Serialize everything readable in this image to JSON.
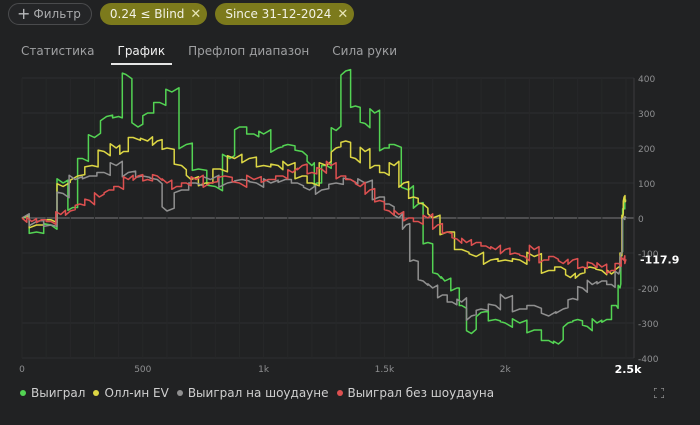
{
  "filters": {
    "add_label": "Фильтр",
    "active": [
      {
        "label": "0.24 ≤ Blind"
      },
      {
        "label": "Since 31-12-2024"
      }
    ]
  },
  "tabs": [
    {
      "label": "Статистика",
      "active": false
    },
    {
      "label": "График",
      "active": true
    },
    {
      "label": "Префлоп диапазон",
      "active": false
    },
    {
      "label": "Сила руки",
      "active": false
    }
  ],
  "chart_data": {
    "type": "line",
    "xlim": [
      0,
      2500
    ],
    "ylim": [
      -400,
      400
    ],
    "x_ticks": [
      "0",
      "500",
      "1k",
      "1.5k",
      "2k",
      "2.5k"
    ],
    "y_ticks": [
      "400",
      "300",
      "200",
      "100",
      "0",
      "-100",
      "-200",
      "-300",
      "-400"
    ],
    "y_ticks_right": true,
    "current_value_label": "-117.9",
    "last_x_label": "2.5k",
    "grid": true,
    "legend_position": "bottom-left",
    "series": [
      {
        "name": "Выиграл",
        "color": "#53d353",
        "points": [
          [
            0,
            0
          ],
          [
            60,
            -40
          ],
          [
            120,
            -20
          ],
          [
            170,
            100
          ],
          [
            210,
            30
          ],
          [
            250,
            170
          ],
          [
            300,
            230
          ],
          [
            350,
            290
          ],
          [
            400,
            290
          ],
          [
            430,
            410
          ],
          [
            480,
            260
          ],
          [
            520,
            300
          ],
          [
            570,
            330
          ],
          [
            620,
            360
          ],
          [
            680,
            210
          ],
          [
            730,
            140
          ],
          [
            800,
            90
          ],
          [
            860,
            170
          ],
          [
            900,
            260
          ],
          [
            960,
            240
          ],
          [
            1000,
            240
          ],
          [
            1060,
            200
          ],
          [
            1100,
            210
          ],
          [
            1160,
            190
          ],
          [
            1200,
            150
          ],
          [
            1220,
            100
          ],
          [
            1260,
            150
          ],
          [
            1300,
            250
          ],
          [
            1340,
            420
          ],
          [
            1380,
            320
          ],
          [
            1420,
            270
          ],
          [
            1460,
            300
          ],
          [
            1500,
            200
          ],
          [
            1540,
            210
          ],
          [
            1600,
            80
          ],
          [
            1640,
            40
          ],
          [
            1680,
            -70
          ],
          [
            1720,
            -160
          ],
          [
            1750,
            -180
          ],
          [
            1800,
            -200
          ],
          [
            1820,
            -250
          ],
          [
            1860,
            -330
          ],
          [
            1900,
            -270
          ],
          [
            1960,
            -290
          ],
          [
            2000,
            -300
          ],
          [
            2060,
            -300
          ],
          [
            2120,
            -320
          ],
          [
            2180,
            -350
          ],
          [
            2220,
            -360
          ],
          [
            2260,
            -300
          ],
          [
            2300,
            -290
          ],
          [
            2340,
            -310
          ],
          [
            2380,
            -300
          ],
          [
            2420,
            -290
          ],
          [
            2460,
            -250
          ],
          [
            2475,
            -200
          ],
          [
            2482,
            -100
          ],
          [
            2490,
            30
          ],
          [
            2500,
            50
          ]
        ]
      },
      {
        "name": "Олл-ин EV",
        "color": "#dcd644",
        "points": [
          [
            0,
            0
          ],
          [
            60,
            -20
          ],
          [
            120,
            -5
          ],
          [
            170,
            90
          ],
          [
            230,
            120
          ],
          [
            290,
            150
          ],
          [
            340,
            190
          ],
          [
            390,
            200
          ],
          [
            420,
            190
          ],
          [
            460,
            230
          ],
          [
            520,
            220
          ],
          [
            560,
            220
          ],
          [
            600,
            200
          ],
          [
            660,
            150
          ],
          [
            700,
            110
          ],
          [
            760,
            100
          ],
          [
            820,
            140
          ],
          [
            880,
            170
          ],
          [
            940,
            170
          ],
          [
            1000,
            150
          ],
          [
            1060,
            150
          ],
          [
            1100,
            150
          ],
          [
            1160,
            120
          ],
          [
            1200,
            100
          ],
          [
            1260,
            150
          ],
          [
            1300,
            200
          ],
          [
            1340,
            220
          ],
          [
            1380,
            170
          ],
          [
            1420,
            190
          ],
          [
            1460,
            150
          ],
          [
            1500,
            130
          ],
          [
            1540,
            150
          ],
          [
            1580,
            100
          ],
          [
            1620,
            60
          ],
          [
            1660,
            40
          ],
          [
            1700,
            0
          ],
          [
            1760,
            -40
          ],
          [
            1820,
            -90
          ],
          [
            1880,
            -110
          ],
          [
            1940,
            -120
          ],
          [
            2000,
            -120
          ],
          [
            2060,
            -120
          ],
          [
            2120,
            -110
          ],
          [
            2180,
            -150
          ],
          [
            2230,
            -140
          ],
          [
            2270,
            -170
          ],
          [
            2310,
            -160
          ],
          [
            2350,
            -140
          ],
          [
            2400,
            -150
          ],
          [
            2440,
            -160
          ],
          [
            2470,
            -140
          ],
          [
            2480,
            -100
          ],
          [
            2486,
            0
          ],
          [
            2492,
            60
          ],
          [
            2500,
            50
          ]
        ]
      },
      {
        "name": "Выиграл на шоудауне",
        "color": "#8f8f8f",
        "points": [
          [
            0,
            0
          ],
          [
            60,
            -10
          ],
          [
            120,
            -20
          ],
          [
            170,
            70
          ],
          [
            220,
            110
          ],
          [
            280,
            120
          ],
          [
            340,
            130
          ],
          [
            390,
            150
          ],
          [
            440,
            130
          ],
          [
            500,
            120
          ],
          [
            560,
            110
          ],
          [
            600,
            20
          ],
          [
            660,
            80
          ],
          [
            720,
            100
          ],
          [
            780,
            110
          ],
          [
            850,
            100
          ],
          [
            910,
            110
          ],
          [
            970,
            100
          ],
          [
            1030,
            100
          ],
          [
            1090,
            110
          ],
          [
            1140,
            100
          ],
          [
            1190,
            80
          ],
          [
            1240,
            80
          ],
          [
            1300,
            100
          ],
          [
            1360,
            110
          ],
          [
            1420,
            100
          ],
          [
            1480,
            60
          ],
          [
            1520,
            40
          ],
          [
            1560,
            0
          ],
          [
            1590,
            -20
          ],
          [
            1620,
            -120
          ],
          [
            1660,
            -180
          ],
          [
            1700,
            -200
          ],
          [
            1740,
            -220
          ],
          [
            1780,
            -240
          ],
          [
            1820,
            -240
          ],
          [
            1860,
            -280
          ],
          [
            1900,
            -260
          ],
          [
            1960,
            -250
          ],
          [
            2000,
            -230
          ],
          [
            2060,
            -260
          ],
          [
            2120,
            -250
          ],
          [
            2180,
            -280
          ],
          [
            2240,
            -260
          ],
          [
            2280,
            -230
          ],
          [
            2320,
            -200
          ],
          [
            2360,
            -190
          ],
          [
            2400,
            -180
          ],
          [
            2440,
            -190
          ],
          [
            2470,
            -160
          ],
          [
            2480,
            -100
          ],
          [
            2490,
            0
          ],
          [
            2500,
            0
          ]
        ]
      },
      {
        "name": "Выиграл без шоудауна",
        "color": "#dd5050",
        "points": [
          [
            0,
            0
          ],
          [
            40,
            -10
          ],
          [
            80,
            -5
          ],
          [
            120,
            -10
          ],
          [
            160,
            10
          ],
          [
            200,
            20
          ],
          [
            240,
            40
          ],
          [
            280,
            50
          ],
          [
            320,
            60
          ],
          [
            360,
            80
          ],
          [
            400,
            90
          ],
          [
            440,
            110
          ],
          [
            480,
            120
          ],
          [
            520,
            110
          ],
          [
            560,
            120
          ],
          [
            600,
            100
          ],
          [
            640,
            90
          ],
          [
            680,
            100
          ],
          [
            720,
            110
          ],
          [
            780,
            100
          ],
          [
            840,
            120
          ],
          [
            900,
            100
          ],
          [
            960,
            110
          ],
          [
            1020,
            110
          ],
          [
            1080,
            120
          ],
          [
            1120,
            130
          ],
          [
            1160,
            150
          ],
          [
            1200,
            130
          ],
          [
            1240,
            140
          ],
          [
            1280,
            150
          ],
          [
            1320,
            120
          ],
          [
            1360,
            110
          ],
          [
            1400,
            90
          ],
          [
            1440,
            80
          ],
          [
            1480,
            50
          ],
          [
            1520,
            20
          ],
          [
            1560,
            10
          ],
          [
            1600,
            0
          ],
          [
            1640,
            -10
          ],
          [
            1680,
            0
          ],
          [
            1720,
            -20
          ],
          [
            1760,
            -40
          ],
          [
            1800,
            -60
          ],
          [
            1840,
            -70
          ],
          [
            1880,
            -70
          ],
          [
            1920,
            -80
          ],
          [
            1960,
            -90
          ],
          [
            2000,
            -90
          ],
          [
            2040,
            -100
          ],
          [
            2080,
            -110
          ],
          [
            2120,
            -90
          ],
          [
            2160,
            -120
          ],
          [
            2200,
            -110
          ],
          [
            2240,
            -130
          ],
          [
            2280,
            -120
          ],
          [
            2320,
            -140
          ],
          [
            2360,
            -130
          ],
          [
            2400,
            -140
          ],
          [
            2440,
            -150
          ],
          [
            2470,
            -130
          ],
          [
            2490,
            -120
          ],
          [
            2500,
            -118
          ]
        ]
      }
    ]
  },
  "fullscreen_icon": "expand-icon"
}
